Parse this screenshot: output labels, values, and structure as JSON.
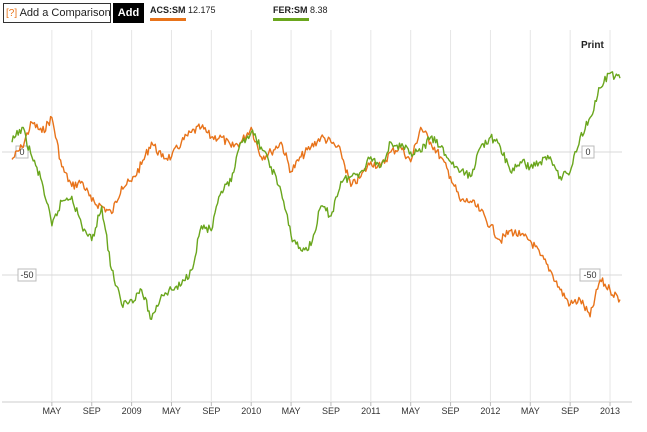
{
  "toolbar": {
    "help_icon": "[?]",
    "compare_text": "Add a Comparison",
    "add_label": "Add",
    "print_label": "Print"
  },
  "legend": [
    {
      "ticker": "ACS:SM",
      "value": "12.175",
      "color": "#e8731a"
    },
    {
      "ticker": "FER:SM",
      "value": "8.38",
      "color": "#6aa61d"
    }
  ],
  "chart_data": {
    "type": "line",
    "y_axis_unit": "percent change",
    "ylim": [
      -100,
      65
    ],
    "y_tick_labels": [
      "0",
      "-50"
    ],
    "x_tick_labels": [
      "MAY",
      "SEP",
      "2009",
      "MAY",
      "SEP",
      "2010",
      "MAY",
      "SEP",
      "2011",
      "MAY",
      "SEP",
      "2012",
      "MAY",
      "SEP",
      "2013"
    ],
    "x_tick_dates": [
      "2008-05",
      "2008-09",
      "2009-01",
      "2009-05",
      "2009-09",
      "2010-01",
      "2010-05",
      "2010-09",
      "2011-01",
      "2011-05",
      "2011-09",
      "2012-01",
      "2012-05",
      "2012-09",
      "2013-01"
    ],
    "x_range": [
      "2008-01",
      "2013-02"
    ],
    "grid": true,
    "series": [
      {
        "name": "ACS:SM",
        "color": "#e8731a",
        "x": [
          "2008-01",
          "2008-02",
          "2008-03",
          "2008-04",
          "2008-05",
          "2008-06",
          "2008-07",
          "2008-08",
          "2008-09",
          "2008-10",
          "2008-11",
          "2008-12",
          "2009-01",
          "2009-02",
          "2009-03",
          "2009-04",
          "2009-05",
          "2009-06",
          "2009-07",
          "2009-08",
          "2009-09",
          "2009-10",
          "2009-11",
          "2009-12",
          "2010-01",
          "2010-02",
          "2010-03",
          "2010-04",
          "2010-05",
          "2010-06",
          "2010-07",
          "2010-08",
          "2010-09",
          "2010-10",
          "2010-11",
          "2010-12",
          "2011-01",
          "2011-02",
          "2011-03",
          "2011-04",
          "2011-05",
          "2011-06",
          "2011-07",
          "2011-08",
          "2011-09",
          "2011-10",
          "2011-11",
          "2011-12",
          "2012-01",
          "2012-02",
          "2012-03",
          "2012-04",
          "2012-05",
          "2012-06",
          "2012-07",
          "2012-08",
          "2012-09",
          "2012-10",
          "2012-11",
          "2012-12",
          "2013-01",
          "2013-02"
        ],
        "values": [
          -3,
          2,
          12,
          8,
          14,
          -6,
          -14,
          -12,
          -20,
          -22,
          -25,
          -14,
          -12,
          -5,
          4,
          -2,
          -2,
          4,
          8,
          10,
          6,
          6,
          2,
          4,
          10,
          -2,
          0,
          4,
          -8,
          -2,
          2,
          6,
          4,
          0,
          -14,
          -10,
          -4,
          -6,
          0,
          2,
          -4,
          10,
          4,
          -2,
          -10,
          -20,
          -20,
          -24,
          -30,
          -36,
          -32,
          -34,
          -36,
          -42,
          -48,
          -56,
          -62,
          -60,
          -67,
          -52,
          -56,
          -60
        ]
      },
      {
        "name": "FER:SM",
        "color": "#6aa61d",
        "x": [
          "2008-01",
          "2008-02",
          "2008-03",
          "2008-04",
          "2008-05",
          "2008-06",
          "2008-07",
          "2008-08",
          "2008-09",
          "2008-10",
          "2008-11",
          "2008-12",
          "2009-01",
          "2009-02",
          "2009-03",
          "2009-04",
          "2009-05",
          "2009-06",
          "2009-07",
          "2009-08",
          "2009-09",
          "2009-10",
          "2009-11",
          "2009-12",
          "2010-01",
          "2010-02",
          "2010-03",
          "2010-04",
          "2010-05",
          "2010-06",
          "2010-07",
          "2010-08",
          "2010-09",
          "2010-10",
          "2010-11",
          "2010-12",
          "2011-01",
          "2011-02",
          "2011-03",
          "2011-04",
          "2011-05",
          "2011-06",
          "2011-07",
          "2011-08",
          "2011-09",
          "2011-10",
          "2011-11",
          "2011-12",
          "2012-01",
          "2012-02",
          "2012-03",
          "2012-04",
          "2012-05",
          "2012-06",
          "2012-07",
          "2012-08",
          "2012-09",
          "2012-10",
          "2012-11",
          "2012-12",
          "2013-01",
          "2013-02"
        ],
        "values": [
          4,
          10,
          -2,
          -12,
          -30,
          -20,
          -18,
          -30,
          -36,
          -22,
          -48,
          -62,
          -60,
          -56,
          -68,
          -58,
          -56,
          -54,
          -48,
          -30,
          -32,
          -16,
          -12,
          4,
          8,
          2,
          -6,
          -16,
          -34,
          -40,
          -38,
          -22,
          -26,
          -12,
          -10,
          -8,
          -2,
          -6,
          4,
          2,
          0,
          0,
          6,
          2,
          -4,
          -8,
          -10,
          2,
          6,
          2,
          -8,
          -4,
          -6,
          -4,
          -2,
          -10,
          -8,
          6,
          14,
          26,
          32,
          30
        ]
      }
    ]
  }
}
